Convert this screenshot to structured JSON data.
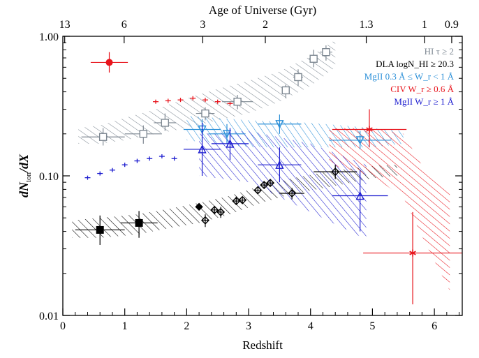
{
  "chart_data": {
    "type": "scatter",
    "title": "",
    "xlabel": "Redshift",
    "ylabel_main": "dN",
    "ylabel_sub": "ion",
    "ylabel_tail": "/dX",
    "top_axis_label": "Age of Universe (Gyr)",
    "xlim": [
      0,
      6.45
    ],
    "ylim": [
      0.01,
      1.0
    ],
    "y_scale": "log",
    "x_ticks": [
      0,
      1,
      2,
      3,
      4,
      5,
      6
    ],
    "x_tick_labels": [
      "0",
      "1",
      "2",
      "3",
      "4",
      "5",
      "6"
    ],
    "y_ticks": [
      0.01,
      0.1,
      1.0
    ],
    "y_tick_labels": [
      "0.01",
      "0.10",
      "1.00"
    ],
    "top_ticks": [
      {
        "label": "13",
        "z": 0.03
      },
      {
        "label": "6",
        "z": 0.99
      },
      {
        "label": "3",
        "z": 2.26
      },
      {
        "label": "2",
        "z": 3.27
      },
      {
        "label": "1.3",
        "z": 4.9
      },
      {
        "label": "1",
        "z": 5.84
      },
      {
        "label": "0.9",
        "z": 6.28
      }
    ],
    "legend_position": "top-right",
    "series": [
      {
        "name": "HI τ ≥ 2",
        "color": "#7f8993",
        "marker": "square-open",
        "band": [
          [
            0.25,
            0.17,
            0.22
          ],
          [
            0.6,
            0.17,
            0.23
          ],
          [
            1.0,
            0.18,
            0.26
          ],
          [
            1.5,
            0.2,
            0.3
          ],
          [
            2.0,
            0.22,
            0.36
          ],
          [
            2.5,
            0.25,
            0.42
          ],
          [
            3.0,
            0.28,
            0.48
          ],
          [
            3.5,
            0.34,
            0.56
          ],
          [
            4.0,
            0.44,
            0.72
          ],
          [
            4.4,
            0.6,
            0.94
          ]
        ],
        "points": [
          {
            "x": 0.65,
            "y": 0.19,
            "xerr": 0.35,
            "ylo": 0.165,
            "yhi": 0.22
          },
          {
            "x": 1.3,
            "y": 0.2,
            "xerr": 0.3,
            "ylo": 0.17,
            "yhi": 0.23
          },
          {
            "x": 1.65,
            "y": 0.24,
            "xerr": 0.18,
            "ylo": 0.21,
            "yhi": 0.28
          },
          {
            "x": 2.3,
            "y": 0.28,
            "xerr": 0.15,
            "ylo": 0.25,
            "yhi": 0.31
          },
          {
            "x": 2.82,
            "y": 0.34,
            "xerr": 0.25,
            "ylo": 0.3,
            "yhi": 0.38
          },
          {
            "x": 3.6,
            "y": 0.41,
            "xerr": 0.06,
            "ylo": 0.36,
            "yhi": 0.45
          },
          {
            "x": 3.8,
            "y": 0.51,
            "xerr": 0.08,
            "ylo": 0.44,
            "yhi": 0.58
          },
          {
            "x": 4.05,
            "y": 0.69,
            "xerr": 0.08,
            "ylo": 0.6,
            "yhi": 0.8
          },
          {
            "x": 4.25,
            "y": 0.77,
            "xerr": 0.1,
            "ylo": 0.67,
            "yhi": 0.86
          }
        ]
      },
      {
        "name": "DLA logN_HI ≥ 20.3",
        "color": "#000000",
        "marker": "diamond-open",
        "band": [
          [
            0.15,
            0.036,
            0.048
          ],
          [
            0.6,
            0.036,
            0.05
          ],
          [
            1.2,
            0.038,
            0.053
          ],
          [
            1.7,
            0.042,
            0.058
          ],
          [
            2.2,
            0.046,
            0.064
          ],
          [
            2.7,
            0.053,
            0.072
          ],
          [
            3.2,
            0.064,
            0.085
          ],
          [
            3.7,
            0.074,
            0.096
          ],
          [
            4.3,
            0.083,
            0.108
          ],
          [
            5.0,
            0.096,
            0.118
          ],
          [
            5.4,
            0.1,
            0.12
          ]
        ],
        "points": [
          {
            "x": 0.6,
            "y": 0.041,
            "xerr": 0.4,
            "ylo": 0.032,
            "yhi": 0.052,
            "marker": "square-filled"
          },
          {
            "x": 1.23,
            "y": 0.046,
            "xerr": 0.3,
            "ylo": 0.036,
            "yhi": 0.056,
            "marker": "square-filled"
          },
          {
            "x": 2.2,
            "y": 0.06,
            "xerr": 0.05,
            "ylo": 0.057,
            "yhi": 0.063,
            "marker": "diamond-filled"
          },
          {
            "x": 2.3,
            "y": 0.048,
            "xerr": 0.05,
            "ylo": 0.043,
            "yhi": 0.053
          },
          {
            "x": 2.45,
            "y": 0.057,
            "xerr": 0.05,
            "ylo": 0.053,
            "yhi": 0.061
          },
          {
            "x": 2.55,
            "y": 0.055,
            "xerr": 0.05,
            "ylo": 0.05,
            "yhi": 0.06
          },
          {
            "x": 2.8,
            "y": 0.066,
            "xerr": 0.05,
            "ylo": 0.062,
            "yhi": 0.071
          },
          {
            "x": 2.9,
            "y": 0.067,
            "xerr": 0.05,
            "ylo": 0.063,
            "yhi": 0.071
          },
          {
            "x": 3.15,
            "y": 0.079,
            "xerr": 0.05,
            "ylo": 0.074,
            "yhi": 0.084
          },
          {
            "x": 3.25,
            "y": 0.086,
            "xerr": 0.05,
            "ylo": 0.081,
            "yhi": 0.091
          },
          {
            "x": 3.35,
            "y": 0.089,
            "xerr": 0.05,
            "ylo": 0.084,
            "yhi": 0.094
          },
          {
            "x": 3.7,
            "y": 0.075,
            "xerr": 0.2,
            "ylo": 0.068,
            "yhi": 0.082
          },
          {
            "x": 4.4,
            "y": 0.107,
            "xerr": 0.35,
            "ylo": 0.095,
            "yhi": 0.12
          }
        ]
      },
      {
        "name": "MgII 0.3 Å ≤ W_r < 1 Å",
        "color": "#2a8fd8",
        "marker": "triangle-down-open",
        "band": [
          [
            2.0,
            0.18,
            0.27
          ],
          [
            3.0,
            0.16,
            0.25
          ],
          [
            4.0,
            0.16,
            0.24
          ],
          [
            5.0,
            0.16,
            0.22
          ],
          [
            5.5,
            0.17,
            0.21
          ]
        ],
        "points": [
          {
            "x": 2.25,
            "y": 0.215,
            "xerr": 0.3,
            "ylo": 0.18,
            "yhi": 0.255
          },
          {
            "x": 2.65,
            "y": 0.2,
            "xerr": 0.3,
            "ylo": 0.17,
            "yhi": 0.235
          },
          {
            "x": 3.5,
            "y": 0.235,
            "xerr": 0.35,
            "ylo": 0.2,
            "yhi": 0.275
          },
          {
            "x": 4.8,
            "y": 0.18,
            "xerr": 0.5,
            "ylo": 0.155,
            "yhi": 0.21
          }
        ]
      },
      {
        "name": "CIV W_r ≥ 0.6 Å",
        "color": "#e8141c",
        "marker": "asterisk",
        "band": [
          [
            4.3,
            0.12,
            0.22
          ],
          [
            5.0,
            0.1,
            0.22
          ],
          [
            5.5,
            0.07,
            0.2
          ],
          [
            5.9,
            0.03,
            0.1
          ],
          [
            6.25,
            0.015,
            0.08
          ]
        ],
        "points": [
          {
            "x": 0.75,
            "y": 0.65,
            "xerr": 0.3,
            "ylo": 0.55,
            "yhi": 0.77,
            "marker": "circle-filled"
          },
          {
            "x": 4.95,
            "y": 0.215,
            "xerr": 0.6,
            "ylo": 0.16,
            "yhi": 0.3
          },
          {
            "x": 5.65,
            "y": 0.028,
            "xerr": 0.8,
            "ylo": 0.012,
            "yhi": 0.055
          }
        ],
        "small_band": [
          [
            1.5,
            0.34
          ],
          [
            1.7,
            0.345
          ],
          [
            1.9,
            0.35
          ],
          [
            2.1,
            0.36
          ],
          [
            2.3,
            0.35
          ],
          [
            2.5,
            0.34
          ],
          [
            2.7,
            0.33
          ]
        ]
      },
      {
        "name": "MgII W_r ≥ 1 Å",
        "color": "#1b1bcf",
        "marker": "triangle-up-open",
        "band": [
          [
            2.2,
            0.1,
            0.2
          ],
          [
            3.0,
            0.09,
            0.21
          ],
          [
            4.0,
            0.055,
            0.17
          ],
          [
            4.9,
            0.035,
            0.12
          ]
        ],
        "points": [
          {
            "x": 2.25,
            "y": 0.155,
            "xerr": 0.3,
            "ylo": 0.1,
            "yhi": 0.24
          },
          {
            "x": 2.7,
            "y": 0.17,
            "xerr": 0.3,
            "ylo": 0.13,
            "yhi": 0.22
          },
          {
            "x": 3.5,
            "y": 0.12,
            "xerr": 0.35,
            "ylo": 0.09,
            "yhi": 0.16
          },
          {
            "x": 4.8,
            "y": 0.072,
            "xerr": 0.45,
            "ylo": 0.04,
            "yhi": 0.11
          }
        ],
        "small_band": [
          [
            0.4,
            0.097
          ],
          [
            0.6,
            0.104
          ],
          [
            0.8,
            0.11
          ],
          [
            1.0,
            0.12
          ],
          [
            1.2,
            0.128
          ],
          [
            1.4,
            0.133
          ],
          [
            1.6,
            0.138
          ],
          [
            1.8,
            0.133
          ]
        ]
      }
    ]
  }
}
